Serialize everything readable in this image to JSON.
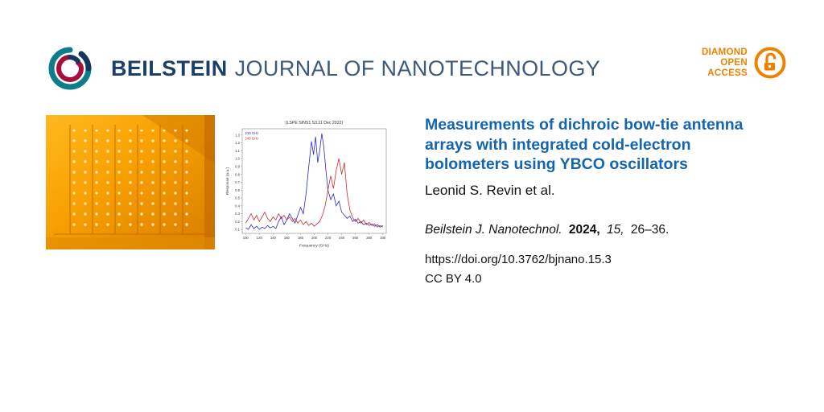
{
  "header": {
    "journal_bold": "BEILSTEIN",
    "journal_light": "JOURNAL OF NANOTECHNOLOGY",
    "open_access": {
      "line1": "DIAMOND",
      "line2": "OPEN",
      "line3": "ACCESS"
    }
  },
  "article": {
    "title": "Measurements of dichroic bow-tie antenna arrays with integrated cold-electron bolometers using YBCO oscillators",
    "authors": "Leonid S. Revin et al.",
    "citation": {
      "journal": "Beilstein J. Nanotechnol.",
      "year": "2024,",
      "volume": "15,",
      "pages": "26–36."
    },
    "doi": "https://doi.org/10.3762/bjnano.15.3",
    "license": "CC BY 4.0"
  },
  "colors": {
    "brand_blue": "#1c3f68",
    "brand_blue_light": "#3d5a7a",
    "title_blue": "#1565ad",
    "orange": "#ee8100",
    "series_blue": "#2a2ad0",
    "series_red": "#d02a2a"
  },
  "chart_data": {
    "type": "line",
    "title": "(LSPE SINS1 S3,11 Dec 2022)",
    "xlabel": "Frequency (GHz)",
    "ylabel": "Response (a.u.)",
    "xlim": [
      95,
      305
    ],
    "ylim": [
      0.05,
      1.38
    ],
    "xticks": [
      100,
      120,
      140,
      160,
      180,
      200,
      220,
      240,
      260,
      280,
      300
    ],
    "yticks": [
      0.1,
      0.2,
      0.3,
      0.4,
      0.5,
      0.6,
      0.7,
      0.8,
      0.9,
      1.0,
      1.1,
      1.2,
      1.3
    ],
    "grid": false,
    "legend_position": "top-left",
    "series": [
      {
        "name": "210 GHz",
        "color": "#2a2ad0",
        "points": [
          [
            100,
            0.12
          ],
          [
            104,
            0.1
          ],
          [
            108,
            0.16
          ],
          [
            112,
            0.11
          ],
          [
            116,
            0.14
          ],
          [
            120,
            0.1
          ],
          [
            124,
            0.13
          ],
          [
            128,
            0.11
          ],
          [
            132,
            0.15
          ],
          [
            136,
            0.12
          ],
          [
            140,
            0.14
          ],
          [
            144,
            0.11
          ],
          [
            148,
            0.2
          ],
          [
            152,
            0.26
          ],
          [
            156,
            0.16
          ],
          [
            160,
            0.22
          ],
          [
            164,
            0.3
          ],
          [
            168,
            0.24
          ],
          [
            172,
            0.18
          ],
          [
            176,
            0.28
          ],
          [
            180,
            0.38
          ],
          [
            184,
            0.3
          ],
          [
            188,
            0.55
          ],
          [
            192,
            0.9
          ],
          [
            196,
            1.22
          ],
          [
            199,
            1.05
          ],
          [
            202,
            1.28
          ],
          [
            205,
            0.95
          ],
          [
            208,
            1.1
          ],
          [
            211,
            1.32
          ],
          [
            214,
            1.15
          ],
          [
            217,
            0.85
          ],
          [
            220,
            0.6
          ],
          [
            224,
            0.48
          ],
          [
            228,
            0.55
          ],
          [
            232,
            0.4
          ],
          [
            236,
            0.46
          ],
          [
            240,
            0.32
          ],
          [
            244,
            0.28
          ],
          [
            248,
            0.24
          ],
          [
            252,
            0.27
          ],
          [
            256,
            0.2
          ],
          [
            260,
            0.23
          ],
          [
            264,
            0.18
          ],
          [
            268,
            0.2
          ],
          [
            272,
            0.16
          ],
          [
            276,
            0.18
          ],
          [
            280,
            0.15
          ],
          [
            284,
            0.17
          ],
          [
            288,
            0.14
          ],
          [
            292,
            0.16
          ],
          [
            296,
            0.13
          ],
          [
            300,
            0.15
          ]
        ]
      },
      {
        "name": "240 GHz",
        "color": "#d02a2a",
        "points": [
          [
            100,
            0.18
          ],
          [
            104,
            0.24
          ],
          [
            108,
            0.3
          ],
          [
            112,
            0.22
          ],
          [
            116,
            0.28
          ],
          [
            120,
            0.2
          ],
          [
            124,
            0.26
          ],
          [
            128,
            0.32
          ],
          [
            132,
            0.24
          ],
          [
            136,
            0.2
          ],
          [
            140,
            0.26
          ],
          [
            144,
            0.22
          ],
          [
            148,
            0.3
          ],
          [
            152,
            0.24
          ],
          [
            156,
            0.28
          ],
          [
            160,
            0.22
          ],
          [
            164,
            0.26
          ],
          [
            168,
            0.2
          ],
          [
            172,
            0.24
          ],
          [
            176,
            0.18
          ],
          [
            180,
            0.22
          ],
          [
            184,
            0.16
          ],
          [
            188,
            0.2
          ],
          [
            192,
            0.15
          ],
          [
            196,
            0.18
          ],
          [
            200,
            0.14
          ],
          [
            204,
            0.17
          ],
          [
            208,
            0.2
          ],
          [
            212,
            0.28
          ],
          [
            216,
            0.4
          ],
          [
            220,
            0.6
          ],
          [
            224,
            0.78
          ],
          [
            228,
            0.62
          ],
          [
            232,
            0.85
          ],
          [
            236,
            1.0
          ],
          [
            240,
            0.8
          ],
          [
            244,
            0.95
          ],
          [
            248,
            0.55
          ],
          [
            252,
            0.35
          ],
          [
            256,
            0.25
          ],
          [
            260,
            0.2
          ],
          [
            264,
            0.24
          ],
          [
            268,
            0.18
          ],
          [
            272,
            0.22
          ],
          [
            276,
            0.16
          ],
          [
            280,
            0.19
          ],
          [
            284,
            0.15
          ],
          [
            288,
            0.17
          ],
          [
            292,
            0.13
          ],
          [
            296,
            0.15
          ],
          [
            300,
            0.13
          ]
        ]
      }
    ]
  }
}
